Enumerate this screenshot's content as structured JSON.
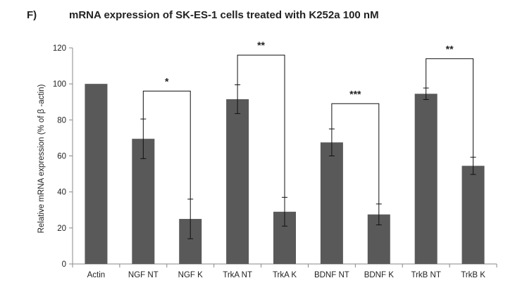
{
  "chart_data": {
    "type": "bar",
    "panel_label": "F)",
    "title": "mRNA expression of SK-ES-1 cells treated with K252a 100 nM",
    "ylabel": "Relative mRNA expression (% of β -actin)",
    "xlabel": "",
    "ylim": [
      0,
      120
    ],
    "yticks": [
      0,
      20,
      40,
      60,
      80,
      100,
      120
    ],
    "grid": false,
    "bar_color": "#595959",
    "categories": [
      "Actin",
      "NGF NT",
      "NGF K",
      "TrkA NT",
      "TrkA K",
      "BDNF NT",
      "BDNF K",
      "TrkB NT",
      "TrkB K"
    ],
    "values": [
      100,
      69.5,
      25,
      91.5,
      29,
      67.5,
      27.5,
      94.5,
      54.5
    ],
    "errors": [
      0,
      11,
      11,
      8,
      8,
      7.5,
      5.8,
      3.2,
      4.8
    ],
    "significance": [
      {
        "from": "NGF NT",
        "to": "NGF K",
        "label": "*",
        "level": 96
      },
      {
        "from": "TrkA NT",
        "to": "TrkA K",
        "label": "**",
        "level": 116
      },
      {
        "from": "BDNF NT",
        "to": "BDNF K",
        "label": "***",
        "level": 89
      },
      {
        "from": "TrkB NT",
        "to": "TrkB K",
        "label": "**",
        "level": 114
      }
    ]
  }
}
